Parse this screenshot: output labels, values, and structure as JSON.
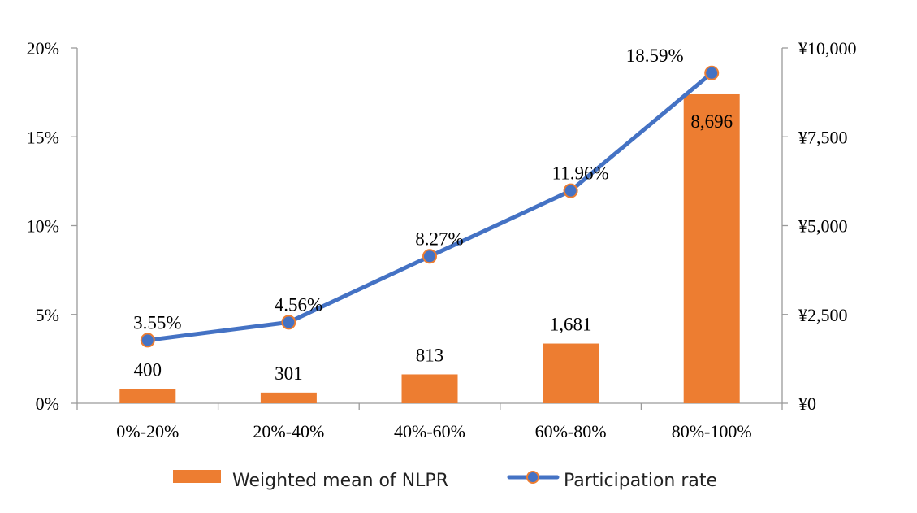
{
  "chart_data": {
    "type": "bar",
    "categories": [
      "0%-20%",
      "20%-40%",
      "40%-60%",
      "60%-80%",
      "80%-100%"
    ],
    "series": [
      {
        "name": "Weighted mean of NLPR",
        "type": "bar",
        "axis": "right",
        "color": "#ED7D31",
        "values": [
          400,
          301,
          813,
          1681,
          8696
        ],
        "labels": [
          "400",
          "301",
          "813",
          "1,681",
          "8,696"
        ]
      },
      {
        "name": "Participation rate",
        "type": "line",
        "axis": "left",
        "color": "#4472C4",
        "marker_edge_color": "#ED7D31",
        "values": [
          3.55,
          4.56,
          8.27,
          11.96,
          18.59
        ],
        "labels": [
          "3.55%",
          "4.56%",
          "8.27%",
          "11.96%",
          "18.59%"
        ]
      }
    ],
    "y_left": {
      "ylim": [
        0,
        20
      ],
      "ticks": [
        0,
        5,
        10,
        15,
        20
      ],
      "tick_labels": [
        "0%",
        "5%",
        "10%",
        "15%",
        "20%"
      ]
    },
    "y_right": {
      "ylim": [
        0,
        10000
      ],
      "ticks": [
        0,
        2500,
        5000,
        7500,
        10000
      ],
      "tick_labels": [
        "¥0",
        "¥2,500",
        "¥5,000",
        "¥7,500",
        "¥10,000"
      ]
    },
    "grid": false,
    "legend_position": "bottom"
  }
}
